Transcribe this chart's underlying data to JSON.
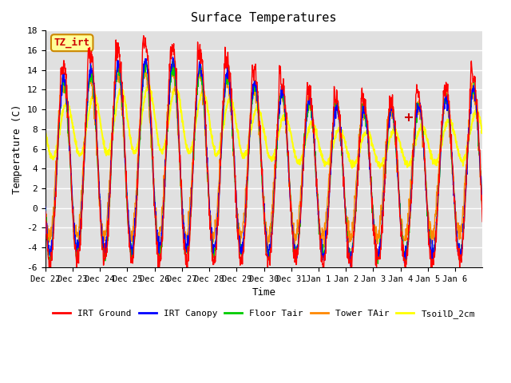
{
  "title": "Surface Temperatures",
  "xlabel": "Time",
  "ylabel": "Temperature (C)",
  "ylim": [
    -6,
    18
  ],
  "yticks": [
    -6,
    -4,
    -2,
    0,
    2,
    4,
    6,
    8,
    10,
    12,
    14,
    16,
    18
  ],
  "x_tick_labels": [
    "Dec 22",
    "Dec 23",
    "Dec 24",
    "Dec 25",
    "Dec 26",
    "Dec 27",
    "Dec 28",
    "Dec 29",
    "Dec 30",
    "Dec 31",
    "Jan 1",
    "Jan 2",
    "Jan 3",
    "Jan 4",
    "Jan 5",
    "Jan 6"
  ],
  "colors": {
    "IRT Ground": "#ff0000",
    "IRT Canopy": "#0000ff",
    "Floor Tair": "#00cc00",
    "Tower TAir": "#ff8800",
    "TsoilD_2cm": "#ffff00"
  },
  "legend_labels": [
    "IRT Ground",
    "IRT Canopy",
    "Floor Tair",
    "Tower TAir",
    "TsoilD_2cm"
  ],
  "bg_color": "#e0e0e0",
  "annotation_text": "TZ_irt",
  "annotation_bg": "#ffff99",
  "annotation_border": "#cc8800",
  "annotation_text_color": "#cc0000"
}
